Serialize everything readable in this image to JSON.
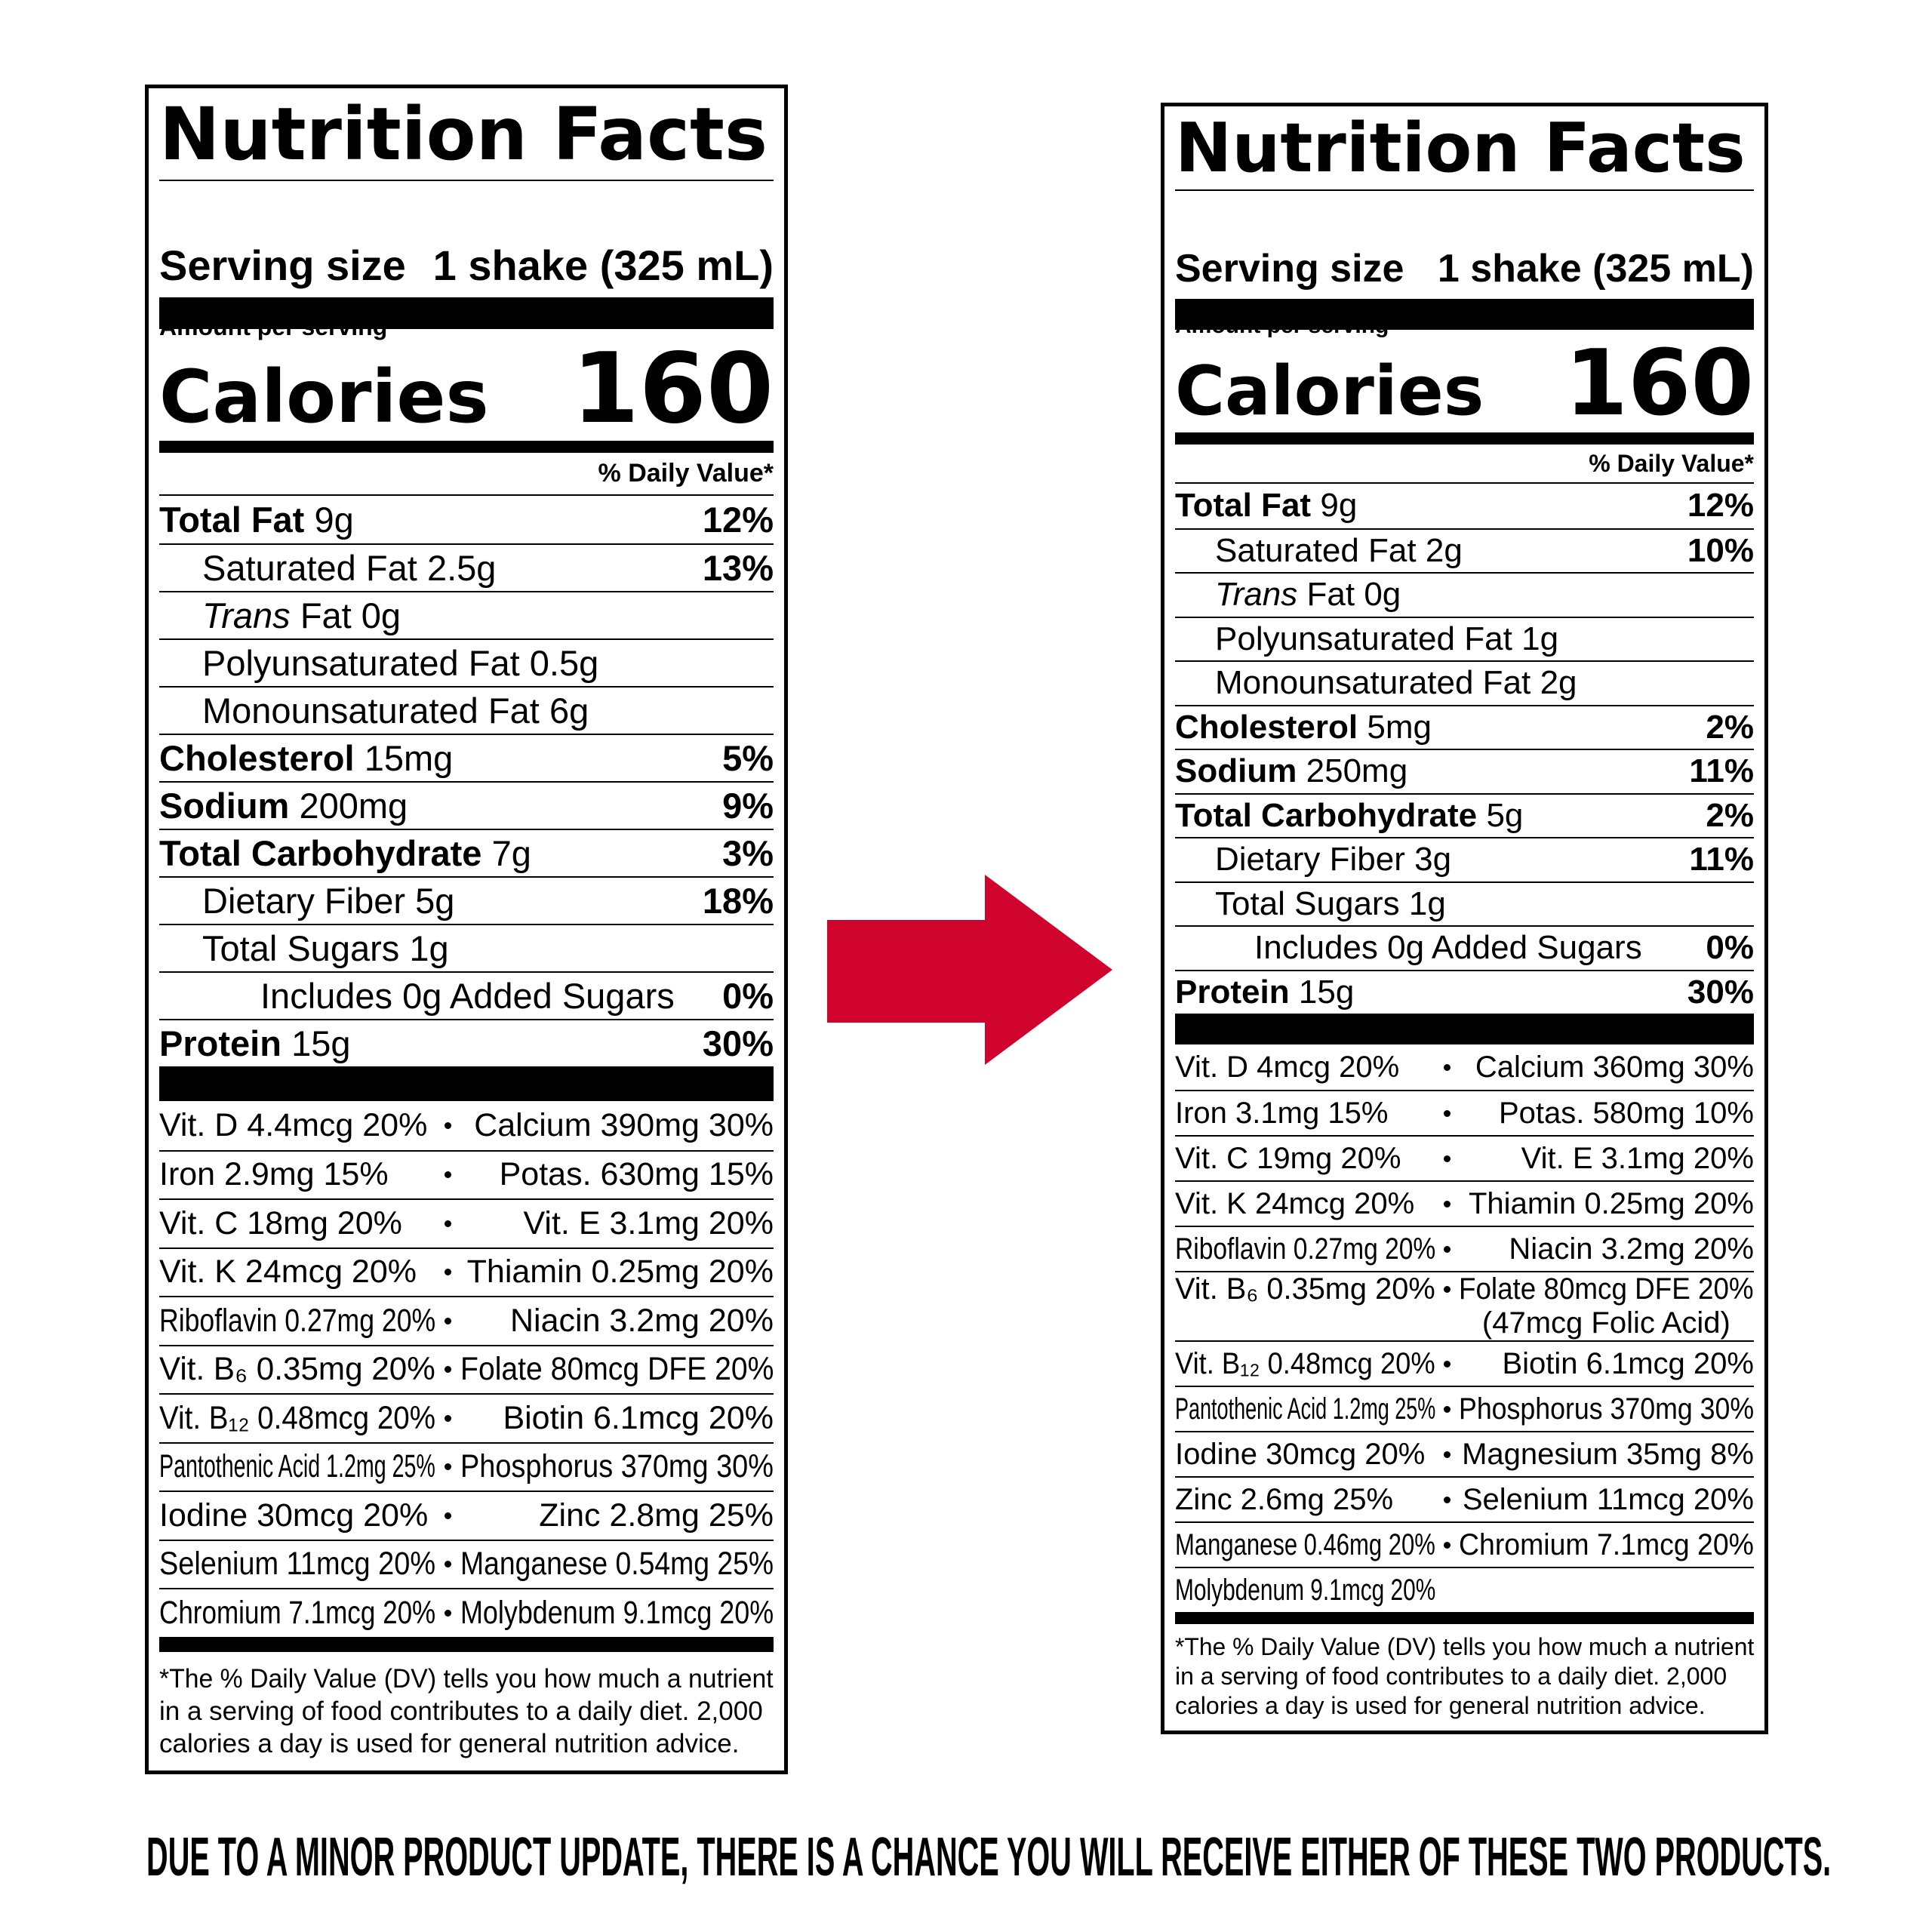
{
  "labels": [
    {
      "title": "Nutrition Facts",
      "serving_size_label": "Serving size",
      "serving_size_value": "1 shake (325 mL)",
      "amount_per_serving": "Amount per serving",
      "calories_label": "Calories",
      "calories_value": "160",
      "daily_value_header": "% Daily Value*",
      "nutrients": [
        {
          "name": "Total Fat",
          "amount": "9g",
          "dv": "12%",
          "indent": 0
        },
        {
          "name": "Saturated Fat",
          "amount": "2.5g",
          "dv": "13%",
          "indent": 1
        },
        {
          "name": "Trans",
          "amount": "Fat 0g",
          "indent": 1,
          "italic": true
        },
        {
          "name": "Polyunsaturated Fat",
          "amount": "0.5g",
          "indent": 1
        },
        {
          "name": "Monounsaturated Fat",
          "amount": "6g",
          "indent": 1
        },
        {
          "name": "Cholesterol",
          "amount": "15mg",
          "dv": "5%",
          "indent": 0
        },
        {
          "name": "Sodium",
          "amount": "200mg",
          "dv": "9%",
          "indent": 0
        },
        {
          "name": "Total Carbohydrate",
          "amount": "7g",
          "dv": "3%",
          "indent": 0
        },
        {
          "name": "Dietary Fiber",
          "amount": "5g",
          "dv": "18%",
          "indent": 1
        },
        {
          "name": "Total Sugars",
          "amount": "1g",
          "indent": 1
        },
        {
          "name": "Includes 0g Added Sugars",
          "dv": "0%",
          "indent": 2
        },
        {
          "name": "Protein",
          "amount": "15g",
          "dv": "30%",
          "indent": 0
        }
      ],
      "vitamins": [
        {
          "left": "Vit. D 4.4mcg 20%",
          "right": "Calcium 390mg 30%"
        },
        {
          "left": "Iron 2.9mg 15%",
          "right": "Potas. 630mg 15%"
        },
        {
          "left": "Vit. C 18mg 20%",
          "right": "Vit. E 3.1mg 20%"
        },
        {
          "left": "Vit. K 24mcg 20%",
          "right": "Thiamin 0.25mg 20%"
        },
        {
          "left": "Riboflavin 0.27mg 20%",
          "right": "Niacin 3.2mg 20%"
        },
        {
          "left": "Vit. B₆ 0.35mg 20%",
          "right": "Folate 80mcg DFE 20%"
        },
        {
          "left": "Vit. B₁₂ 0.48mcg 20%",
          "right": "Biotin 6.1mcg 20%"
        },
        {
          "left": "Pantothenic Acid 1.2mg 25%",
          "right": "Phosphorus 370mg 30%"
        },
        {
          "left": "Iodine 30mcg 20%",
          "right": "Zinc 2.8mg 25%"
        },
        {
          "left": "Selenium 11mcg 20%",
          "right": "Manganese 0.54mg 25%"
        },
        {
          "left": "Chromium 7.1mcg 20%",
          "right": "Molybdenum 9.1mcg 20%"
        }
      ],
      "footnote": [
        "*The % Daily Value (DV) tells you how much a nutrient",
        "in a serving of food contributes to a daily diet. 2,000",
        "calories a day is used for general nutrition advice."
      ]
    },
    {
      "title": "Nutrition Facts",
      "serving_size_label": "Serving size",
      "serving_size_value": "1 shake (325 mL)",
      "amount_per_serving": "Amount per serving",
      "calories_label": "Calories",
      "calories_value": "160",
      "daily_value_header": "% Daily Value*",
      "nutrients": [
        {
          "name": "Total Fat",
          "amount": "9g",
          "dv": "12%",
          "indent": 0
        },
        {
          "name": "Saturated Fat",
          "amount": "2g",
          "dv": "10%",
          "indent": 1
        },
        {
          "name": "Trans",
          "amount": "Fat 0g",
          "indent": 1,
          "italic": true
        },
        {
          "name": "Polyunsaturated Fat",
          "amount": "1g",
          "indent": 1
        },
        {
          "name": "Monounsaturated Fat",
          "amount": "2g",
          "indent": 1
        },
        {
          "name": "Cholesterol",
          "amount": "5mg",
          "dv": "2%",
          "indent": 0
        },
        {
          "name": "Sodium",
          "amount": "250mg",
          "dv": "11%",
          "indent": 0
        },
        {
          "name": "Total Carbohydrate",
          "amount": "5g",
          "dv": "2%",
          "indent": 0
        },
        {
          "name": "Dietary Fiber",
          "amount": "3g",
          "dv": "11%",
          "indent": 1
        },
        {
          "name": "Total Sugars",
          "amount": "1g",
          "indent": 1
        },
        {
          "name": "Includes 0g Added Sugars",
          "dv": "0%",
          "indent": 2
        },
        {
          "name": "Protein",
          "amount": "15g",
          "dv": "30%",
          "indent": 0
        }
      ],
      "vitamins": [
        {
          "left": "Vit. D 4mcg 20%",
          "right": "Calcium 360mg 30%"
        },
        {
          "left": "Iron 3.1mg 15%",
          "right": "Potas. 580mg 10%"
        },
        {
          "left": "Vit. C 19mg 20%",
          "right": "Vit. E 3.1mg 20%"
        },
        {
          "left": "Vit. K 24mcg 20%",
          "right": "Thiamin 0.25mg 20%"
        },
        {
          "left": "Riboflavin 0.27mg 20%",
          "right": "Niacin 3.2mg 20%"
        },
        {
          "left": "Vit. B₆ 0.35mg 20%",
          "right": "Folate 80mcg DFE 20%",
          "right_note": "(47mcg Folic Acid)"
        },
        {
          "left": "Vit. B₁₂ 0.48mcg 20%",
          "right": "Biotin 6.1mcg 20%"
        },
        {
          "left": "Pantothenic Acid 1.2mg 25%",
          "right": "Phosphorus 370mg 30%"
        },
        {
          "left": "Iodine 30mcg 20%",
          "right": "Magnesium 35mg 8%"
        },
        {
          "left": "Zinc 2.6mg 25%",
          "right": "Selenium 11mcg 20%"
        },
        {
          "left": "Manganese 0.46mg 20%",
          "right": "Chromium 7.1mcg 20%"
        },
        {
          "left": "Molybdenum 9.1mcg 20%"
        }
      ],
      "footnote": [
        "*The % Daily Value (DV) tells you how much a nutrient",
        "in a serving of food contributes to a daily diet. 2,000",
        "calories a day is used for general nutrition advice."
      ]
    }
  ],
  "notice": "DUE TO A MINOR PRODUCT UPDATE, THERE IS A CHANCE YOU WILL RECEIVE EITHER OF THESE TWO PRODUCTS."
}
